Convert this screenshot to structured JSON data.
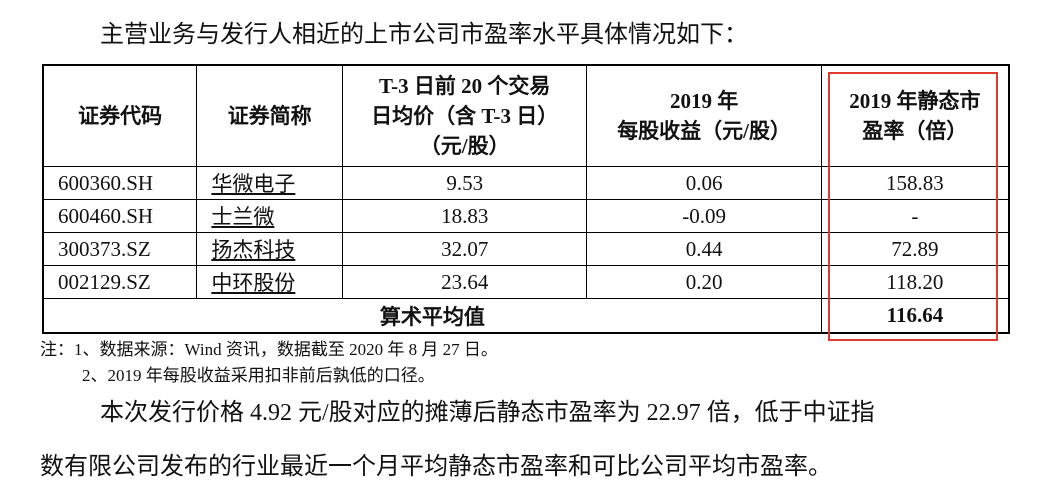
{
  "intro": "主营业务与发行人相近的上市公司市盈率水平具体情况如下：",
  "table": {
    "header": [
      [
        "证券代码"
      ],
      [
        "证券简称"
      ],
      [
        "T-3 日前 20 个交易",
        "日均价（含 T-3 日）",
        "（元/股）"
      ],
      [
        "2019 年",
        "每股收益（元/股）"
      ],
      [
        "2019 年静态市",
        "盈率（倍）"
      ]
    ],
    "rows": [
      [
        "600360.SH",
        "华微电子",
        "9.53",
        "0.06",
        "158.83"
      ],
      [
        "600460.SH",
        "士兰微",
        "18.83",
        "-0.09",
        "-"
      ],
      [
        "300373.SZ",
        "扬杰科技",
        "32.07",
        "0.44",
        "72.89"
      ],
      [
        "002129.SZ",
        "中环股份",
        "23.64",
        "0.20",
        "118.20"
      ]
    ],
    "average": {
      "label": "算术平均值",
      "value": "116.64"
    }
  },
  "notes": [
    "注：1、数据来源：Wind 资讯，数据截至 2020 年 8 月 27 日。",
    "2、2019 年每股收益采用扣非前后孰低的口径。"
  ],
  "paragraph": [
    "本次发行价格 4.92 元/股对应的摊薄后静态市盈率为 22.97 倍，低于中证指",
    "数有限公司发布的行业最近一个月平均静态市盈率和可比公司平均市盈率。"
  ]
}
